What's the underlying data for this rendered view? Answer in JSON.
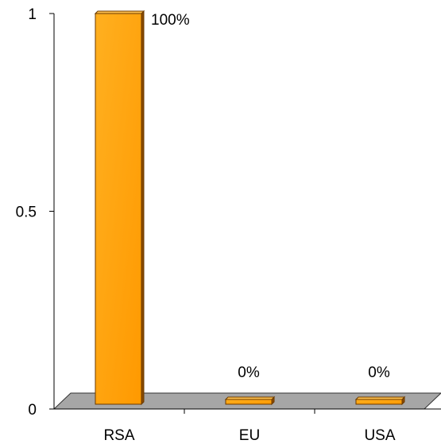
{
  "chart_data": {
    "type": "bar",
    "categories": [
      "RSA",
      "EU",
      "USA"
    ],
    "values": [
      1,
      0,
      0
    ],
    "data_labels": [
      "100%",
      "0%",
      "0%"
    ],
    "y_ticks": [
      {
        "value": 0,
        "label": "0"
      },
      {
        "value": 0.5,
        "label": "0.5"
      },
      {
        "value": 1,
        "label": "1"
      }
    ],
    "ylim": [
      0,
      1
    ],
    "grid": false,
    "legend": "none",
    "bar_color": "#FFA500",
    "bar_edge_color": "#6B3A00",
    "floor_color": "#A6A6A6"
  }
}
